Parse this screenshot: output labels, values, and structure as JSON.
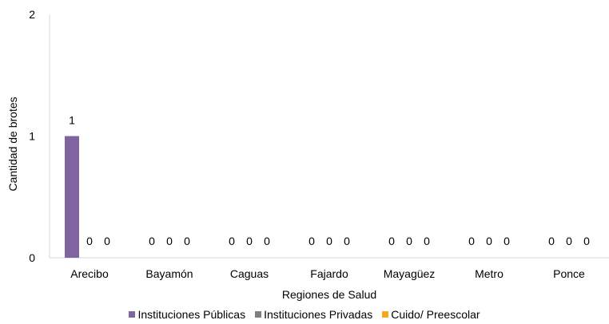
{
  "chart_data": {
    "type": "bar",
    "categories": [
      "Arecibo",
      "Bayamón",
      "Caguas",
      "Fajardo",
      "Mayagüez",
      "Metro",
      "Ponce"
    ],
    "series": [
      {
        "name": "Instituciones Públicas",
        "values": [
          1,
          0,
          0,
          0,
          0,
          0,
          0
        ],
        "color": "#8064A2"
      },
      {
        "name": "Instituciones Privadas",
        "values": [
          0,
          0,
          0,
          0,
          0,
          0,
          0
        ],
        "color": "#7F7F7F"
      },
      {
        "name": "Cuido/ Preescolar",
        "values": [
          0,
          0,
          0,
          0,
          0,
          0,
          0
        ],
        "color": "#F5A623"
      }
    ],
    "ylim": [
      0,
      2
    ],
    "yticks": [
      0,
      1,
      2
    ],
    "xlabel": "Regiones de Salud",
    "ylabel": "Cantidad de brotes",
    "legend_position": "bottom",
    "grid": false,
    "data_labels": true
  }
}
